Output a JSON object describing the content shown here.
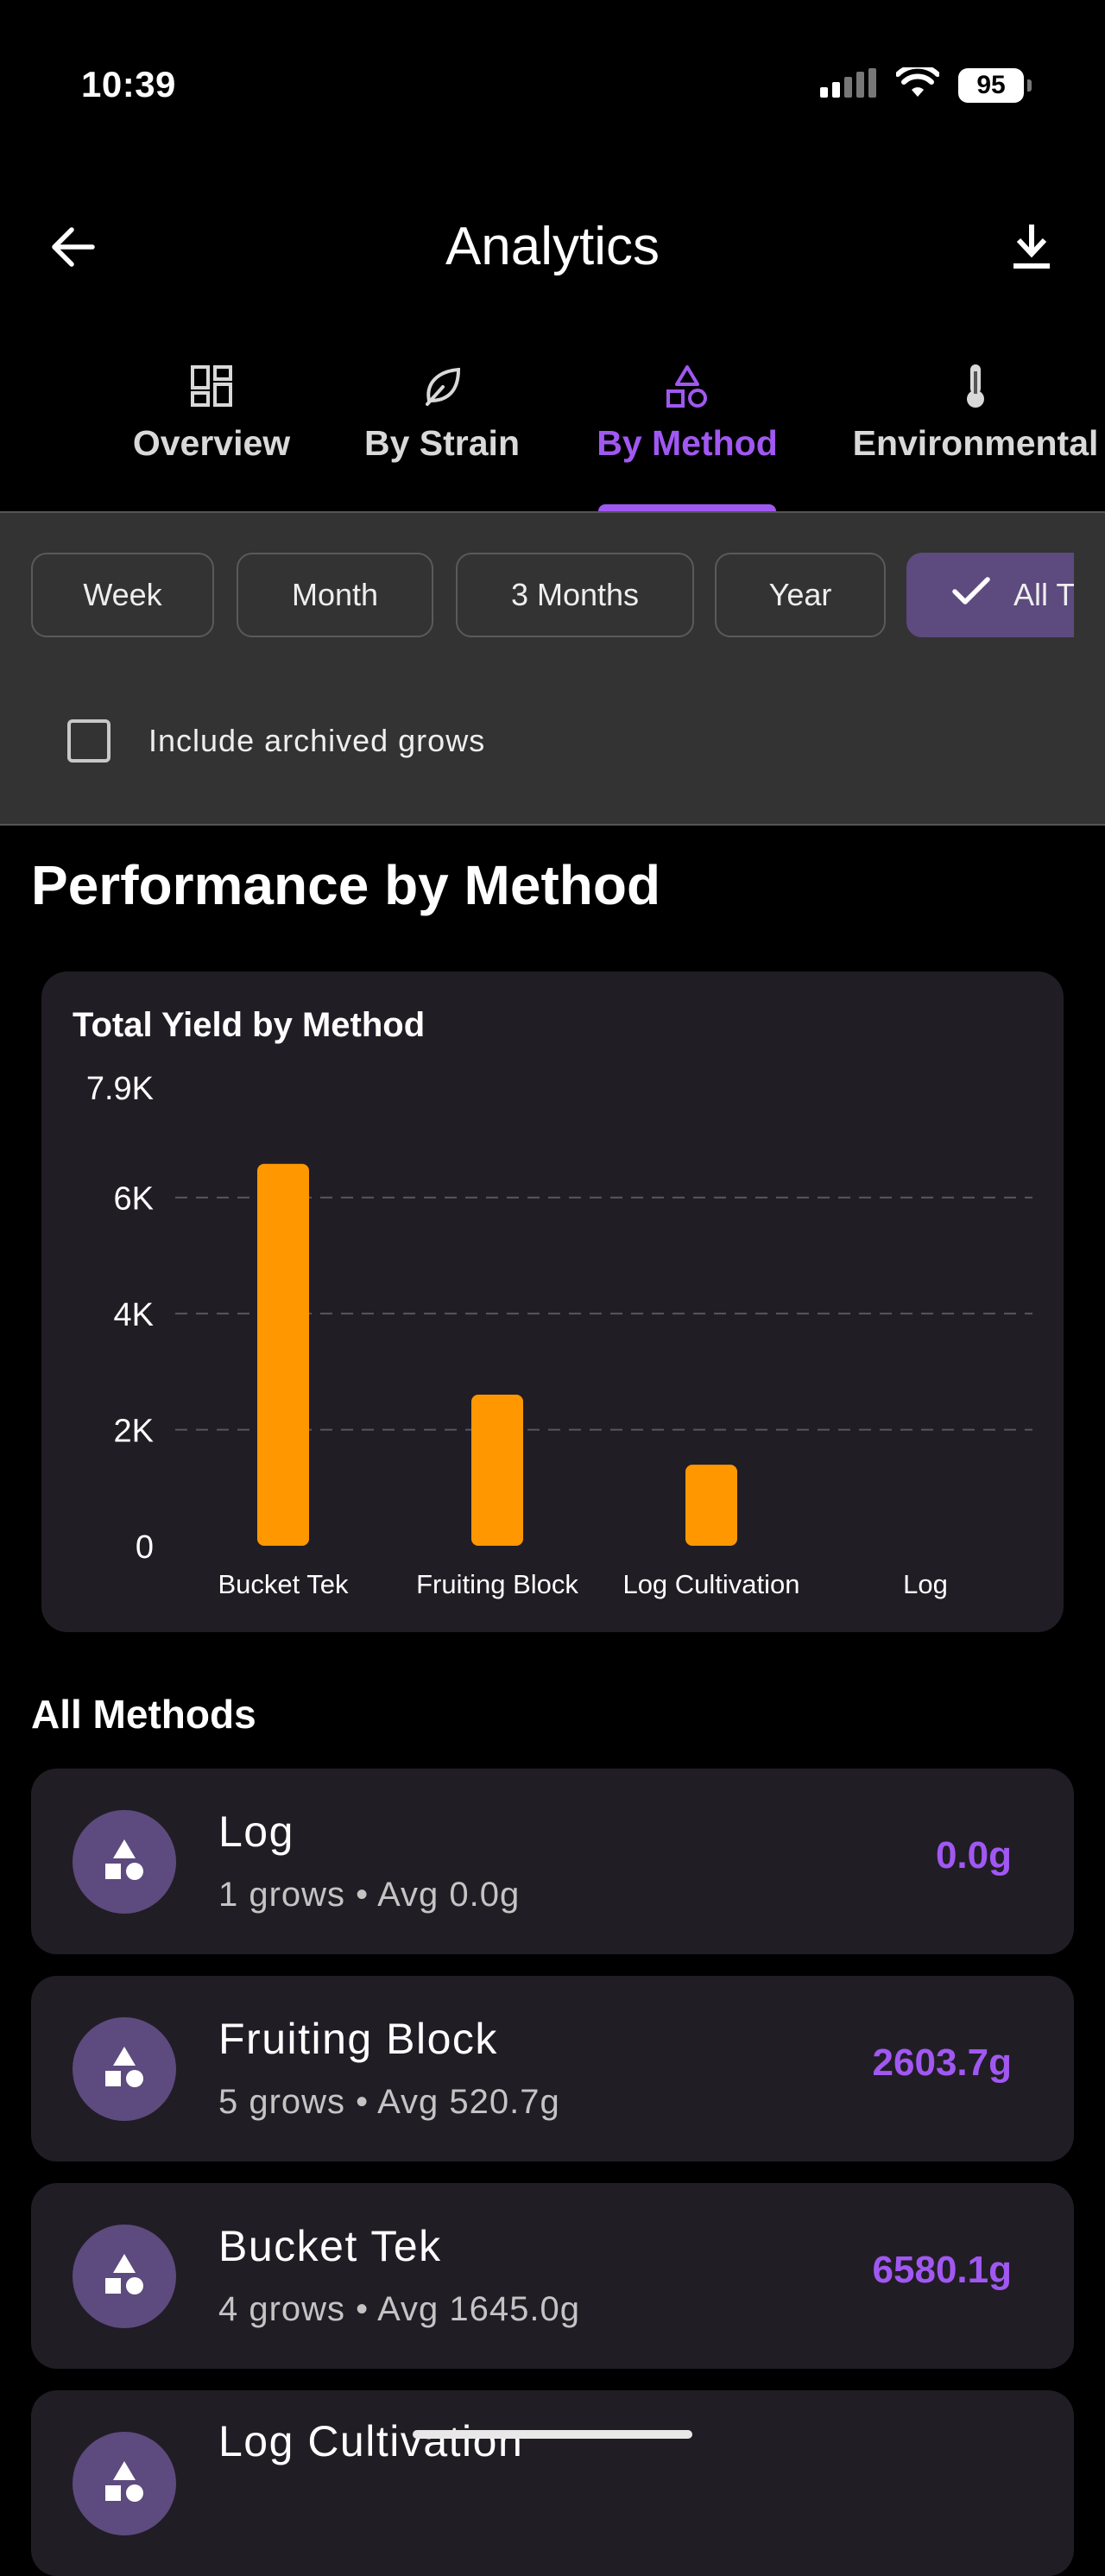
{
  "status_bar": {
    "time": "10:39",
    "battery": "95"
  },
  "app_bar": {
    "title": "Analytics",
    "back_icon": "arrow-left-icon",
    "download_icon": "download-icon"
  },
  "tabs": [
    {
      "label": "Overview",
      "icon": "dashboard-grid-icon",
      "active": false
    },
    {
      "label": "By Strain",
      "icon": "leaf-icon",
      "active": false
    },
    {
      "label": "By Method",
      "icon": "shapes-icon",
      "active": true
    },
    {
      "label": "Environmental",
      "icon": "thermometer-icon",
      "active": false
    }
  ],
  "filters": {
    "periods": [
      {
        "label": "Week",
        "selected": false
      },
      {
        "label": "Month",
        "selected": false
      },
      {
        "label": "3 Months",
        "selected": false
      },
      {
        "label": "Year",
        "selected": false
      },
      {
        "label": "All Time",
        "selected": true
      }
    ],
    "include_archived_label": "Include archived grows",
    "include_archived": false
  },
  "section_title": "Performance by Method",
  "chart_data": {
    "type": "bar",
    "title": "Total Yield by Method",
    "xlabel": "",
    "ylabel": "",
    "categories": [
      "Bucket Tek",
      "Fruiting Block",
      "Log Cultivation",
      "Log"
    ],
    "values": [
      6580.1,
      2603.7,
      1396.3,
      0.0
    ],
    "ylim": [
      0,
      7900
    ],
    "y_ticks": [
      0,
      2000,
      4000,
      6000
    ],
    "y_tick_labels": [
      "0",
      "2K",
      "4K",
      "6K"
    ],
    "y_max_label": "7.9K",
    "grid": true,
    "bar_color": "#ff9800"
  },
  "list_title": "All Methods",
  "methods": [
    {
      "name": "Log",
      "sub": "1 grows • Avg 0.0g",
      "yield": "0.0g"
    },
    {
      "name": "Fruiting Block",
      "sub": "5 grows • Avg 520.7g",
      "yield": "2603.7g"
    },
    {
      "name": "Bucket Tek",
      "sub": "4 grows • Avg 1645.0g",
      "yield": "6580.1g"
    },
    {
      "name": "Log Cultivation",
      "sub": "",
      "yield": ""
    }
  ],
  "colors": {
    "accent": "#a158f2",
    "bar": "#ff9800",
    "card": "#211d25",
    "panel": "#333333",
    "chip_selected": "#5d4a7e"
  }
}
